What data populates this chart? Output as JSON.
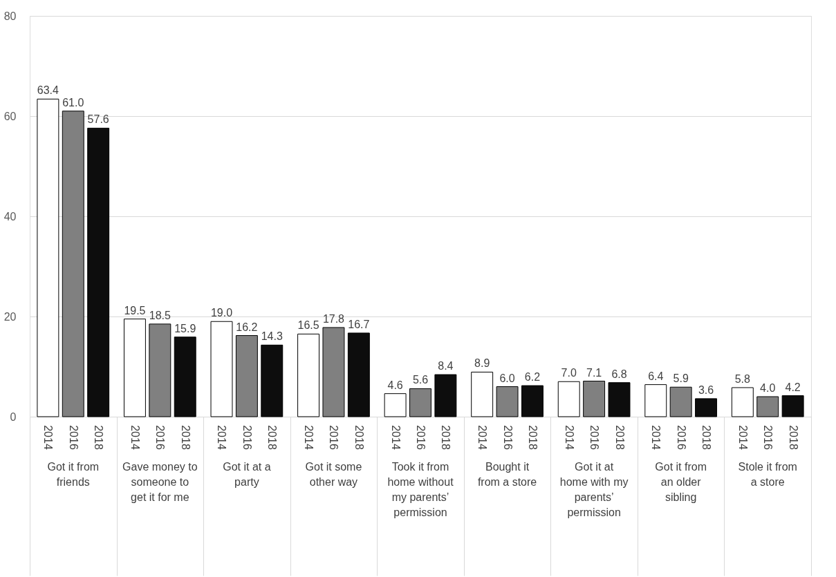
{
  "chart_data": {
    "type": "bar",
    "categories": [
      "Got it from friends",
      "Gave money to someone to get it for me",
      "Got it at a party",
      "Got it some other way",
      "Took it from home without my parents’ permission",
      "Bought it from a store",
      "Got it at home with my parents’ permission",
      "Got it from an older sibling",
      "Stole it from a store"
    ],
    "series": [
      {
        "name": "2014",
        "color": "#ffffff",
        "values": [
          63.4,
          19.5,
          19.0,
          16.5,
          4.6,
          8.9,
          7.0,
          6.4,
          5.8
        ],
        "value_labels": [
          "63.4",
          "19.5",
          "19.0",
          "16.5",
          "4.6",
          "8.9",
          "7.0",
          "6.4",
          "5.8"
        ]
      },
      {
        "name": "2016",
        "color": "#808080",
        "values": [
          61.0,
          18.5,
          16.2,
          17.8,
          5.6,
          6.0,
          7.1,
          5.9,
          4.0
        ],
        "value_labels": [
          "61.0",
          "18.5",
          "16.2",
          "17.8",
          "5.6",
          "6.0",
          "7.1",
          "5.9",
          "4.0"
        ]
      },
      {
        "name": "2018",
        "color": "#0d0d0d",
        "values": [
          57.6,
          15.9,
          14.3,
          16.7,
          8.4,
          6.2,
          6.8,
          3.6,
          4.2
        ],
        "value_labels": [
          "57.6",
          "15.9",
          "14.3",
          "16.7",
          "8.4",
          "6.2",
          "6.8",
          "3.6",
          "4.2"
        ]
      }
    ],
    "ylim": [
      0,
      80
    ],
    "yticks": [
      0,
      20,
      40,
      60,
      80
    ],
    "grid": "y"
  }
}
